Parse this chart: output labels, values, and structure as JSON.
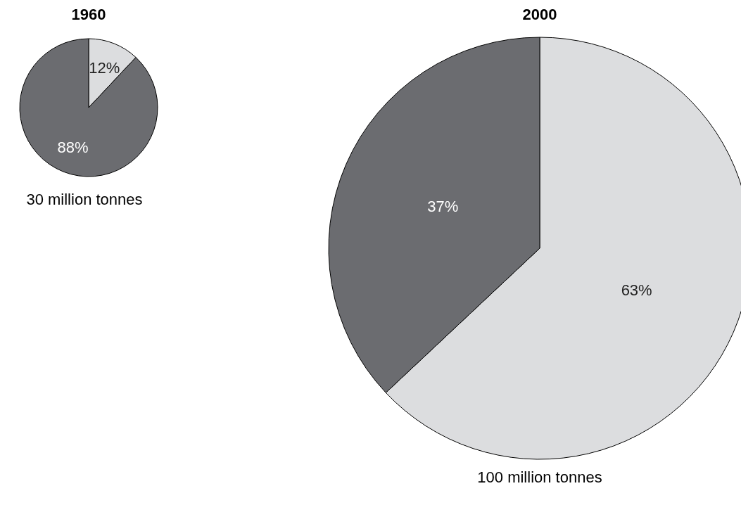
{
  "chart_data": [
    {
      "type": "pie",
      "title": "1960",
      "categories": [
        null,
        null
      ],
      "values": [
        12,
        88
      ],
      "colors": [
        "#dcdddf",
        "#6b6c70"
      ],
      "value_labels": [
        "12%",
        "88%"
      ],
      "annotations": [
        "30 million tonnes"
      ]
    },
    {
      "type": "pie",
      "title": "2000",
      "categories": [
        null,
        null
      ],
      "values": [
        63,
        37
      ],
      "colors": [
        "#dcdddf",
        "#6b6c70"
      ],
      "value_labels": [
        "63%",
        "37%"
      ],
      "annotations": [
        "100 million tonnes"
      ]
    }
  ]
}
